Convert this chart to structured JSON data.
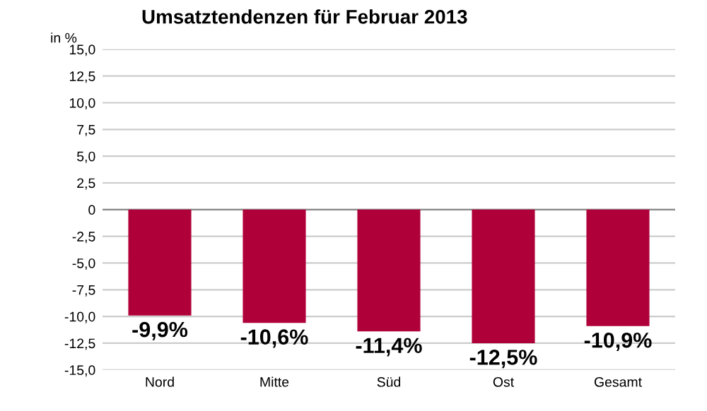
{
  "chart_data": {
    "type": "bar",
    "title": "Umsatztendenzen für Februar 2013",
    "ylabel": "in %",
    "categories": [
      "Nord",
      "Mitte",
      "Süd",
      "Ost",
      "Gesamt"
    ],
    "values": [
      -9.9,
      -10.6,
      -11.4,
      -12.5,
      -10.9
    ],
    "value_labels": [
      "-9,9%",
      "-10,6%",
      "-11,4%",
      "-12,5%",
      "-10,9%"
    ],
    "color": "#b0003a",
    "ylim": [
      -15,
      15
    ],
    "yticks": [
      {
        "value": -15,
        "label": "-15,0"
      },
      {
        "value": -12.5,
        "label": "-12,5"
      },
      {
        "value": -10,
        "label": "-10,0"
      },
      {
        "value": -7.5,
        "label": "-7,5"
      },
      {
        "value": -5,
        "label": "-5,0"
      },
      {
        "value": -2.5,
        "label": "-2,5"
      },
      {
        "value": 0,
        "label": "0"
      },
      {
        "value": 2.5,
        "label": "2,5"
      },
      {
        "value": 5,
        "label": "5,0"
      },
      {
        "value": 7.5,
        "label": "7,5"
      },
      {
        "value": 10,
        "label": "10,0"
      },
      {
        "value": 12.5,
        "label": "12,5"
      },
      {
        "value": 15,
        "label": "15,0"
      }
    ],
    "grid": "y"
  }
}
